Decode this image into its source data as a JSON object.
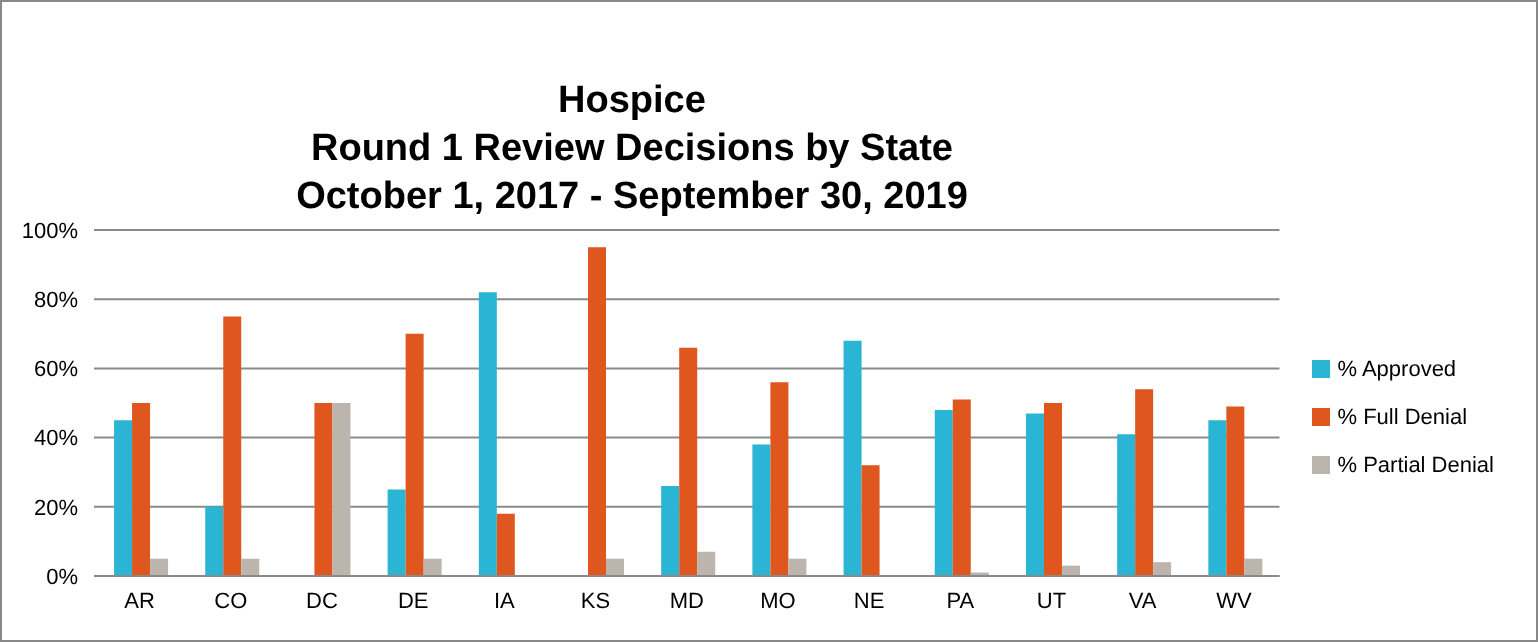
{
  "chart_data": {
    "type": "bar",
    "title": "Hospice\nRound 1 Review Decisions by State\nOctober 1, 2017 - September 30, 2019",
    "categories": [
      "AR",
      "CO",
      "DC",
      "DE",
      "IA",
      "KS",
      "MD",
      "MO",
      "NE",
      "PA",
      "UT",
      "VA",
      "WV"
    ],
    "series": [
      {
        "name": "% Approved",
        "color": "#29b5d3",
        "values": [
          45,
          20,
          0,
          25,
          82,
          0,
          26,
          38,
          68,
          48,
          47,
          41,
          45
        ]
      },
      {
        "name": "% Full Denial",
        "color": "#e0561f",
        "values": [
          50,
          75,
          50,
          70,
          18,
          95,
          66,
          56,
          32,
          51,
          50,
          54,
          49
        ]
      },
      {
        "name": "% Partial Denial",
        "color": "#bcb5ae",
        "values": [
          5,
          5,
          50,
          5,
          0,
          5,
          7,
          5,
          0,
          1,
          3,
          4,
          5
        ]
      }
    ],
    "ylim": [
      0,
      100
    ],
    "yticks": [
      {
        "value": 0,
        "label": "0%"
      },
      {
        "value": 20,
        "label": "20%"
      },
      {
        "value": 40,
        "label": "40%"
      },
      {
        "value": 60,
        "label": "60%"
      },
      {
        "value": 80,
        "label": "80%"
      },
      {
        "value": 100,
        "label": "100%"
      }
    ],
    "grid": "y",
    "legend": "right"
  }
}
